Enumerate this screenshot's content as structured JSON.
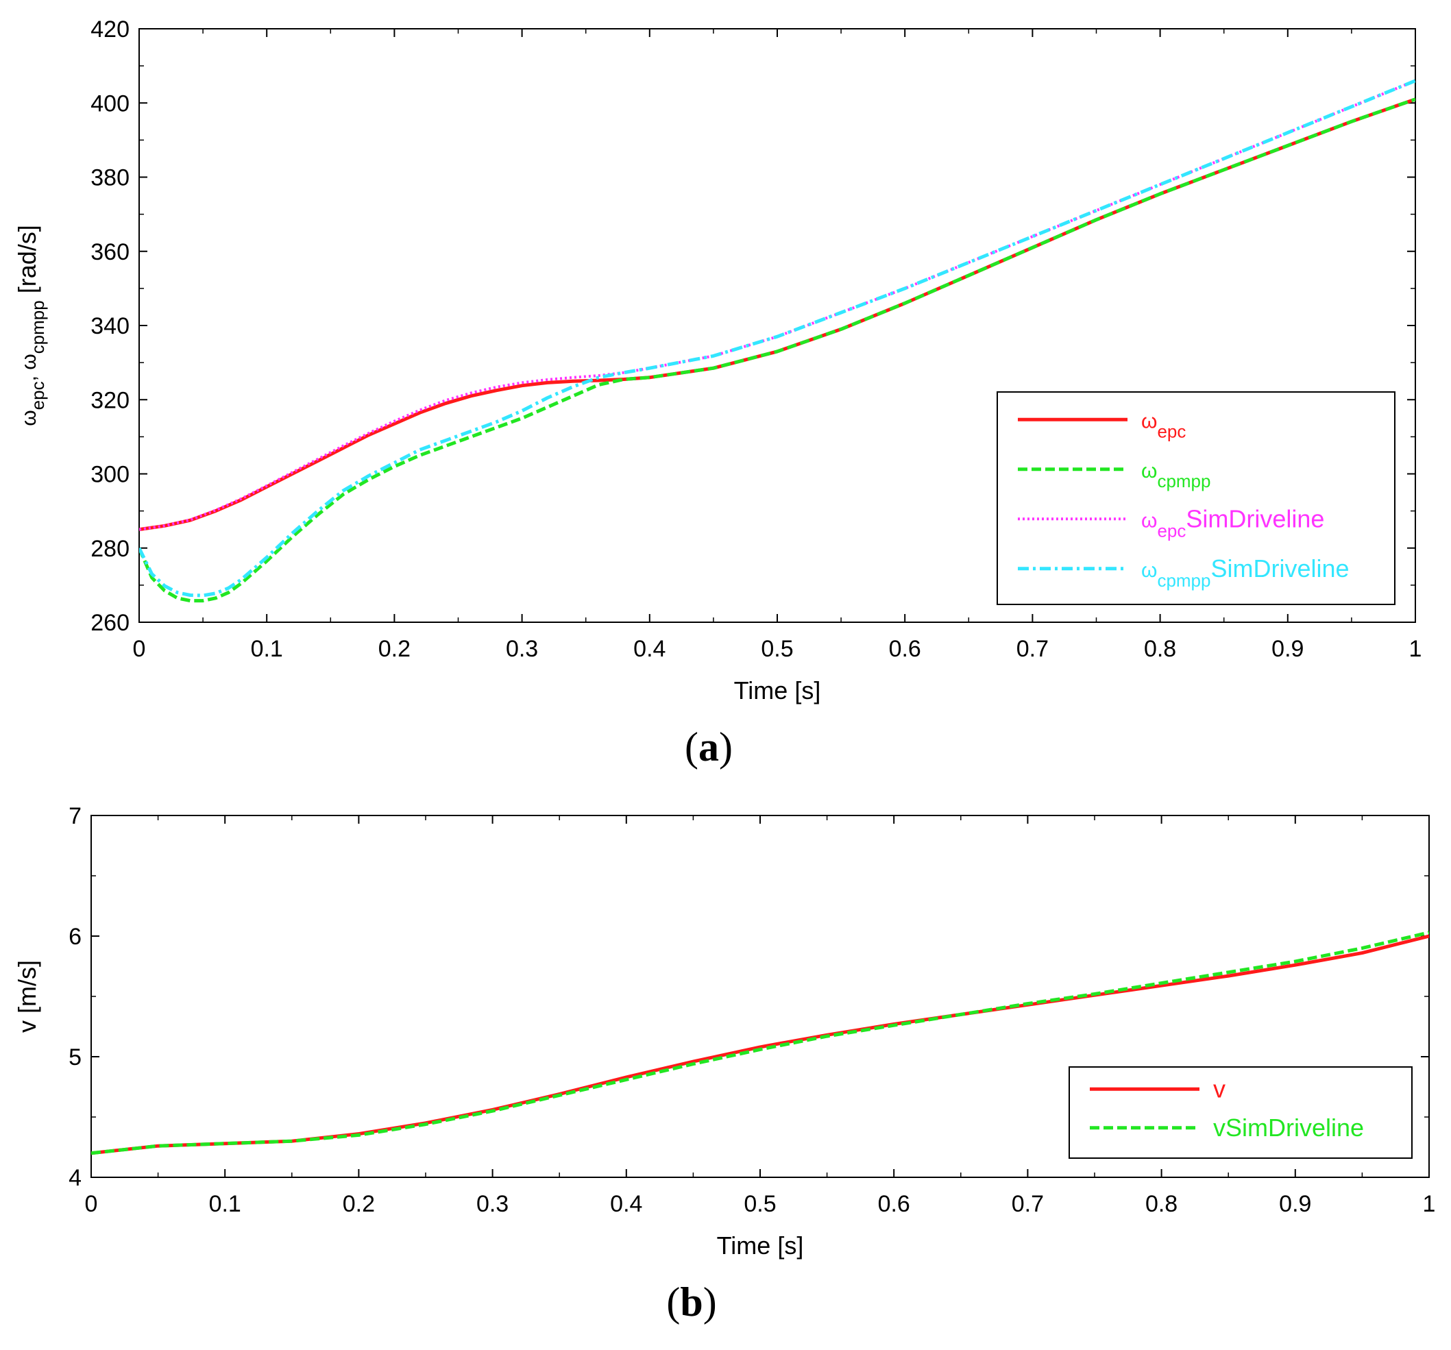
{
  "colors": {
    "red": "#ff1a1a",
    "green": "#22e622",
    "magenta": "#ff33ff",
    "cyan": "#33e6ff",
    "frame": "#000000"
  },
  "chart_data": [
    {
      "type": "line",
      "caption": {
        "open": "(",
        "letter": "a",
        "close": ")"
      },
      "title": "",
      "xlabel": "Time [s]",
      "ylabel": {
        "base1": "ω",
        "sub1": "epc",
        "sep": ", ",
        "base2": "ω",
        "sub2": "cpmpp",
        "unit": " [rad/s]"
      },
      "xlim": [
        0,
        1
      ],
      "ylim": [
        260,
        420
      ],
      "xticks": [
        "0",
        "0.1",
        "0.2",
        "0.3",
        "0.4",
        "0.5",
        "0.6",
        "0.7",
        "0.8",
        "0.9",
        "1"
      ],
      "yticks": [
        "260",
        "280",
        "300",
        "320",
        "340",
        "360",
        "380",
        "400",
        "420"
      ],
      "xtick_values": [
        0,
        0.1,
        0.2,
        0.3,
        0.4,
        0.5,
        0.6,
        0.7,
        0.8,
        0.9,
        1
      ],
      "ytick_values": [
        260,
        280,
        300,
        320,
        340,
        360,
        380,
        400,
        420
      ],
      "grid": false,
      "legend_position": "lower-right",
      "series": [
        {
          "key": "epc",
          "color_key": "red",
          "style": "solid",
          "label": {
            "base": "ω",
            "sub": "epc",
            "suffix": ""
          },
          "x": [
            0,
            0.02,
            0.04,
            0.06,
            0.08,
            0.1,
            0.12,
            0.14,
            0.16,
            0.18,
            0.2,
            0.22,
            0.24,
            0.26,
            0.28,
            0.3,
            0.32,
            0.34,
            0.36,
            0.38,
            0.4,
            0.45,
            0.5,
            0.55,
            0.6,
            0.65,
            0.7,
            0.75,
            0.8,
            0.85,
            0.9,
            0.95,
            1.0
          ],
          "y": [
            285,
            286,
            287.5,
            290,
            293,
            296.5,
            300,
            303.5,
            307,
            310.5,
            313.5,
            316.5,
            319,
            321,
            322.5,
            323.8,
            324.6,
            325,
            325.2,
            325.5,
            326,
            328.5,
            333,
            339,
            346,
            353.5,
            361,
            368.5,
            375.5,
            382,
            388.5,
            395,
            401
          ]
        },
        {
          "key": "cpmpp",
          "color_key": "green",
          "style": "dashed",
          "label": {
            "base": "ω",
            "sub": "cpmpp",
            "suffix": ""
          },
          "x": [
            0,
            0.01,
            0.02,
            0.03,
            0.04,
            0.05,
            0.06,
            0.07,
            0.08,
            0.1,
            0.12,
            0.14,
            0.16,
            0.18,
            0.2,
            0.22,
            0.24,
            0.26,
            0.28,
            0.3,
            0.32,
            0.34,
            0.36,
            0.38,
            0.4,
            0.45,
            0.5,
            0.55,
            0.6,
            0.65,
            0.7,
            0.75,
            0.8,
            0.85,
            0.9,
            0.95,
            1.0
          ],
          "y": [
            280,
            272,
            268.5,
            266.5,
            265.8,
            265.8,
            266.5,
            268,
            270.5,
            276.5,
            283,
            289,
            294.5,
            298.5,
            302,
            305,
            307.5,
            310,
            312.5,
            315,
            318,
            321,
            324,
            325.5,
            326,
            328.5,
            333,
            339,
            346,
            353.5,
            361,
            368.5,
            375.5,
            382,
            388.5,
            395,
            401
          ]
        },
        {
          "key": "epcSim",
          "color_key": "magenta",
          "style": "dotted",
          "label": {
            "base": "ω",
            "sub": "epc",
            "suffix": "SimDriveline"
          },
          "x": [
            0,
            0.02,
            0.04,
            0.06,
            0.08,
            0.1,
            0.12,
            0.14,
            0.16,
            0.18,
            0.2,
            0.22,
            0.24,
            0.26,
            0.28,
            0.3,
            0.32,
            0.34,
            0.36,
            0.38,
            0.4,
            0.45,
            0.5,
            0.55,
            0.6,
            0.65,
            0.7,
            0.75,
            0.8,
            0.85,
            0.9,
            0.95,
            1.0
          ],
          "y": [
            285,
            286,
            287.6,
            290.2,
            293.3,
            296.8,
            300.4,
            304,
            307.6,
            311,
            314.2,
            317.2,
            319.8,
            321.8,
            323.4,
            324.6,
            325.4,
            326,
            326.5,
            327.3,
            328.5,
            331.8,
            337,
            343.5,
            350,
            357,
            364,
            371,
            378,
            385,
            392,
            399,
            406
          ]
        },
        {
          "key": "cpmppSim",
          "color_key": "cyan",
          "style": "dashdot",
          "label": {
            "base": "ω",
            "sub": "cpmpp",
            "suffix": "SimDriveline"
          },
          "x": [
            0,
            0.01,
            0.02,
            0.03,
            0.04,
            0.05,
            0.06,
            0.07,
            0.08,
            0.1,
            0.12,
            0.14,
            0.16,
            0.18,
            0.2,
            0.22,
            0.24,
            0.26,
            0.28,
            0.3,
            0.32,
            0.34,
            0.36,
            0.38,
            0.4,
            0.45,
            0.5,
            0.55,
            0.6,
            0.65,
            0.7,
            0.75,
            0.8,
            0.85,
            0.9,
            0.95,
            1.0
          ],
          "y": [
            280,
            273,
            269.8,
            268,
            267.3,
            267.2,
            267.8,
            269.2,
            271.5,
            277.5,
            284,
            290,
            295.5,
            299.5,
            303,
            306.5,
            309,
            311.5,
            314,
            317,
            320.5,
            323.5,
            326,
            327.3,
            328.5,
            331.8,
            337,
            343.5,
            350,
            357,
            364,
            371,
            378,
            385,
            392,
            399,
            406
          ]
        }
      ]
    },
    {
      "type": "line",
      "caption": {
        "open": "(",
        "letter": "b",
        "close": ")"
      },
      "title": "",
      "xlabel": "Time [s]",
      "ylabel": {
        "text": "v [m/s]"
      },
      "xlim": [
        0,
        1
      ],
      "ylim": [
        4,
        7
      ],
      "xticks": [
        "0",
        "0.1",
        "0.2",
        "0.3",
        "0.4",
        "0.5",
        "0.6",
        "0.7",
        "0.8",
        "0.9",
        "1"
      ],
      "yticks": [
        "4",
        "5",
        "6",
        "7"
      ],
      "xtick_values": [
        0,
        0.1,
        0.2,
        0.3,
        0.4,
        0.5,
        0.6,
        0.7,
        0.8,
        0.9,
        1
      ],
      "ytick_values": [
        4,
        5,
        6,
        7
      ],
      "grid": false,
      "legend_position": "lower-right",
      "series": [
        {
          "key": "v",
          "color_key": "red",
          "style": "solid",
          "label": {
            "base": "v",
            "sub": "",
            "suffix": ""
          },
          "x": [
            0,
            0.05,
            0.1,
            0.15,
            0.2,
            0.25,
            0.3,
            0.35,
            0.4,
            0.45,
            0.5,
            0.55,
            0.6,
            0.65,
            0.7,
            0.75,
            0.8,
            0.85,
            0.9,
            0.95,
            1.0
          ],
          "y": [
            4.2,
            4.26,
            4.28,
            4.3,
            4.36,
            4.45,
            4.56,
            4.69,
            4.83,
            4.96,
            5.08,
            5.18,
            5.27,
            5.35,
            5.43,
            5.51,
            5.59,
            5.67,
            5.76,
            5.86,
            6.0
          ]
        },
        {
          "key": "vSim",
          "color_key": "green",
          "style": "dashed",
          "label": {
            "base": "vSimDriveline",
            "sub": "",
            "suffix": ""
          },
          "x": [
            0,
            0.05,
            0.1,
            0.15,
            0.2,
            0.25,
            0.3,
            0.35,
            0.4,
            0.45,
            0.5,
            0.55,
            0.6,
            0.65,
            0.7,
            0.75,
            0.8,
            0.85,
            0.9,
            0.95,
            1.0
          ],
          "y": [
            4.2,
            4.26,
            4.28,
            4.3,
            4.35,
            4.44,
            4.55,
            4.68,
            4.81,
            4.94,
            5.06,
            5.17,
            5.26,
            5.35,
            5.44,
            5.52,
            5.61,
            5.7,
            5.79,
            5.9,
            6.03
          ]
        }
      ]
    }
  ]
}
